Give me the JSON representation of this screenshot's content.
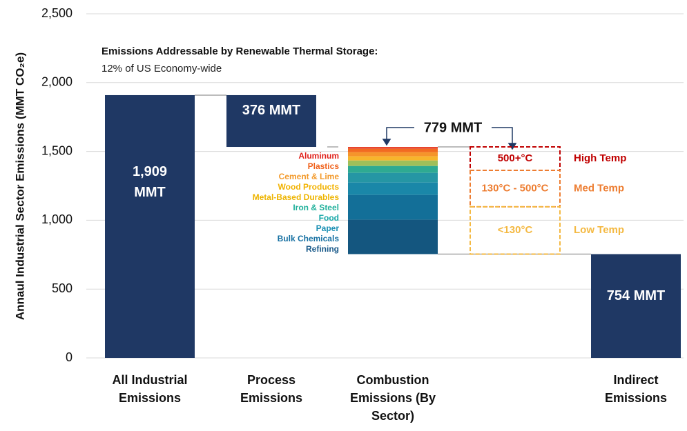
{
  "chart_data": {
    "type": "waterfall",
    "title": "Emissions Addressable by Renewable Thermal Storage:",
    "subtitle": "12% of US Economy-wide",
    "y_label": "Annaul Industrial Sector Emissions (MMT CO₂e)",
    "ylim": [
      0,
      2500
    ],
    "yticks": [
      0,
      500,
      {
        "value": 1000,
        "label": "1,000"
      },
      {
        "value": 1500,
        "label": "1,500"
      },
      {
        "value": 2000,
        "label": "2,000"
      },
      {
        "value": 2500,
        "label": "2,500"
      }
    ],
    "grid": true,
    "color": "#1f3864",
    "categories": [
      "All Industrial Emissions",
      "Process Emissions",
      "Combustion Emissions (By Sector)",
      "Indirect Emissions"
    ],
    "measures": [
      "total",
      "decrease",
      "decrease",
      "total"
    ],
    "values": [
      1909,
      376,
      779,
      754
    ],
    "value_labels": [
      "1,909 MMT",
      "376 MMT",
      "779 MMT",
      "754 MMT"
    ],
    "sectors": [
      {
        "name": "Aluminum",
        "color": "#e8452c",
        "value": 14
      },
      {
        "name": "Plastics",
        "color": "#f26b21",
        "value": 25
      },
      {
        "name": "Cement & Lime",
        "color": "#f5952b",
        "value": 30
      },
      {
        "name": "Wood Products",
        "color": "#f7b52c",
        "value": 30
      },
      {
        "name": "Metal-Based Durables",
        "color": "#9fbf5a",
        "value": 40
      },
      {
        "name": "Iron & Steel",
        "color": "#2eaa92",
        "value": 50
      },
      {
        "name": "Food",
        "color": "#2596a4",
        "value": 70
      },
      {
        "name": "Paper",
        "color": "#1a87a8",
        "value": 90
      },
      {
        "name": "Bulk Chemicals",
        "color": "#136f98",
        "value": 180
      },
      {
        "name": "Refining",
        "color": "#14567f",
        "value": 250
      }
    ],
    "sector_label_colors": [
      "#e0201a",
      "#f0621c",
      "#f39a2b",
      "#f2b200",
      "#eeb400",
      "#1fb09a",
      "#14a7a7",
      "#1a8fb3",
      "#1670a2",
      "#1a5a8a"
    ],
    "temperature_bands": [
      {
        "label": "500+°C",
        "name": "High Temp",
        "color": "#c00000",
        "value": 170
      },
      {
        "label": "130°C - 500°C",
        "name": "Med Temp",
        "color": "#ed7d31",
        "value": 265
      },
      {
        "label": "<130°C",
        "name": "Low Temp",
        "color": "#f4b942",
        "value": 344
      }
    ]
  }
}
